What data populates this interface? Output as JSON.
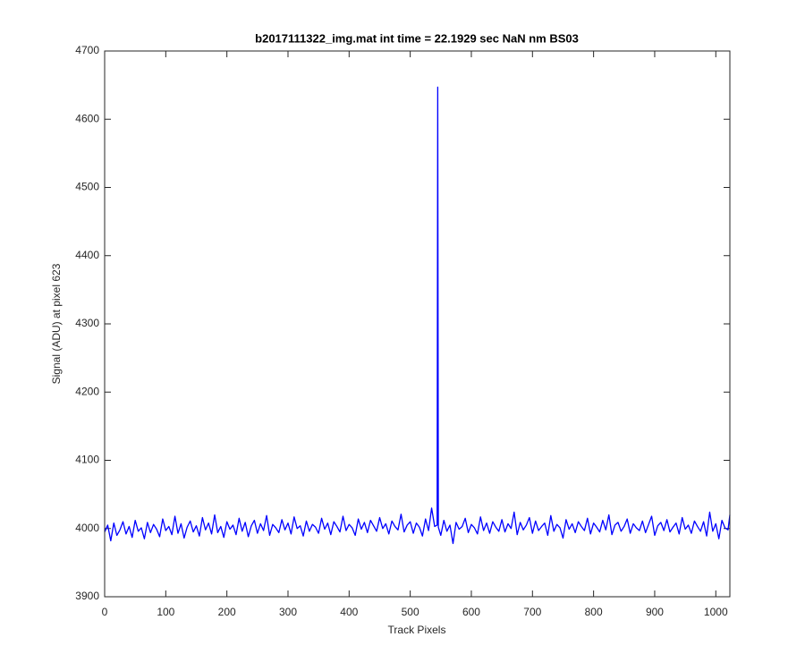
{
  "chart_data": {
    "type": "line",
    "title": "b2017111322_img.mat int time = 22.1929 sec  NaN nm BS03",
    "xlabel": "Track Pixels",
    "ylabel": "Signal (ADU) at pixel 623",
    "color": "#0000ff",
    "xlim": [
      0,
      1023
    ],
    "ylim": [
      3900,
      4700
    ],
    "xticks": [
      0,
      100,
      200,
      300,
      400,
      500,
      600,
      700,
      800,
      900,
      1000
    ],
    "yticks": [
      3900,
      4000,
      4100,
      4200,
      4300,
      4400,
      4500,
      4600,
      4700
    ],
    "x": [
      0,
      5,
      10,
      15,
      20,
      25,
      30,
      35,
      40,
      45,
      50,
      55,
      60,
      65,
      70,
      75,
      80,
      85,
      90,
      95,
      100,
      105,
      110,
      115,
      120,
      125,
      130,
      135,
      140,
      145,
      150,
      155,
      160,
      165,
      170,
      175,
      180,
      185,
      190,
      195,
      200,
      205,
      210,
      215,
      220,
      225,
      230,
      235,
      240,
      245,
      250,
      255,
      260,
      265,
      270,
      275,
      280,
      285,
      290,
      295,
      300,
      305,
      310,
      315,
      320,
      325,
      330,
      335,
      340,
      345,
      350,
      355,
      360,
      365,
      370,
      375,
      380,
      385,
      390,
      395,
      400,
      405,
      410,
      415,
      420,
      425,
      430,
      435,
      440,
      445,
      450,
      455,
      460,
      465,
      470,
      475,
      480,
      485,
      490,
      495,
      500,
      505,
      510,
      515,
      520,
      525,
      530,
      535,
      540,
      544,
      545,
      546,
      550,
      555,
      560,
      565,
      570,
      575,
      580,
      585,
      590,
      595,
      600,
      605,
      610,
      615,
      620,
      625,
      630,
      635,
      640,
      645,
      650,
      655,
      660,
      665,
      670,
      675,
      680,
      685,
      690,
      695,
      700,
      705,
      710,
      715,
      720,
      725,
      730,
      735,
      740,
      745,
      750,
      755,
      760,
      765,
      770,
      775,
      780,
      785,
      790,
      795,
      800,
      805,
      810,
      815,
      820,
      825,
      830,
      835,
      840,
      845,
      850,
      855,
      860,
      865,
      870,
      875,
      880,
      885,
      890,
      895,
      900,
      905,
      910,
      915,
      920,
      925,
      930,
      935,
      940,
      945,
      950,
      955,
      960,
      965,
      970,
      975,
      980,
      985,
      990,
      995,
      1000,
      1005,
      1010,
      1015,
      1020,
      1023
    ],
    "values": [
      3995,
      4005,
      3982,
      4008,
      3990,
      3998,
      4010,
      3992,
      4003,
      3987,
      4012,
      3996,
      4001,
      3985,
      4009,
      3994,
      4006,
      3999,
      3988,
      4014,
      3997,
      4003,
      3991,
      4018,
      3993,
      4007,
      3986,
      4002,
      4011,
      3995,
      4004,
      3989,
      4016,
      3998,
      4008,
      3992,
      4020,
      3994,
      4003,
      3987,
      4010,
      3999,
      4005,
      3991,
      4015,
      3996,
      4009,
      3988,
      4004,
      4012,
      3993,
      4007,
      3997,
      4019,
      3990,
      4006,
      4001,
      3994,
      4013,
      3998,
      4008,
      3992,
      4017,
      4000,
      4004,
      3989,
      4011,
      3996,
      4006,
      4002,
      3993,
      4015,
      3999,
      4008,
      3991,
      4010,
      4003,
      3995,
      4018,
      3997,
      4006,
      4001,
      3990,
      4014,
      3999,
      4009,
      3994,
      4012,
      4004,
      3996,
      4016,
      4000,
      4007,
      3992,
      4011,
      4003,
      3998,
      4021,
      3995,
      4005,
      4010,
      3993,
      4008,
      4002,
      3989,
      4014,
      3997,
      4030,
      4003,
      4005,
      4647,
      4002,
      3990,
      4012,
      3996,
      4005,
      3978,
      4009,
      3999,
      4003,
      4015,
      3994,
      4006,
      4001,
      3992,
      4017,
      3997,
      4008,
      3993,
      4010,
      4002,
      3996,
      4013,
      3995,
      4007,
      4000,
      4024,
      3991,
      4009,
      3998,
      4005,
      4016,
      3993,
      4011,
      3997,
      4003,
      4008,
      3990,
      4019,
      3996,
      4006,
      4001,
      3986,
      4013,
      3999,
      4007,
      3994,
      4010,
      4003,
      3997,
      4015,
      3992,
      4008,
      4002,
      3995,
      4012,
      3998,
      4020,
      3991,
      4005,
      4009,
      3996,
      4003,
      4014,
      3993,
      4007,
      4001,
      3997,
      4011,
      3994,
      4006,
      4018,
      3990,
      4004,
      4009,
      3997,
      4013,
      3995,
      4002,
      4008,
      3992,
      4016,
      3999,
      4005,
      3993,
      4011,
      4003,
      3996,
      4010,
      3989,
      4024,
      3996,
      4007,
      3985,
      4012,
      4001,
      3998,
      4020
    ]
  }
}
